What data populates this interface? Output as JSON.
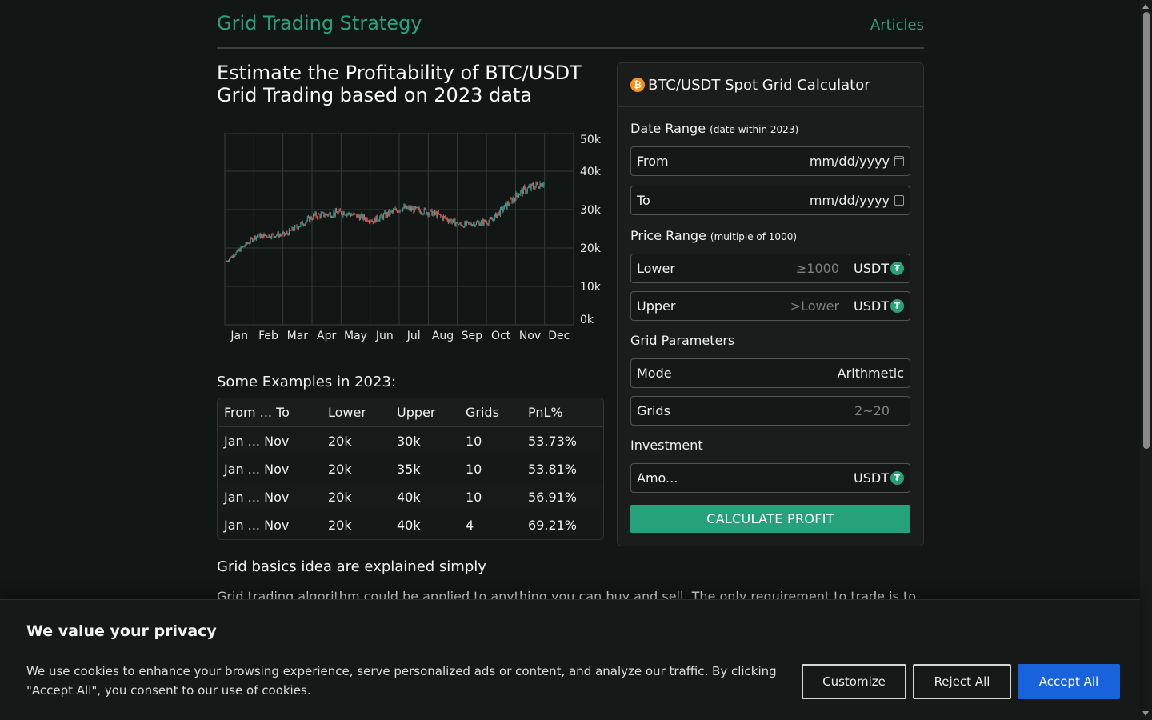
{
  "nav": {
    "brand": "Grid Trading Strategy",
    "articles": "Articles"
  },
  "headline": {
    "line1": "Estimate the Profitability of BTC/USDT",
    "line2": "Grid Trading based on 2023 data"
  },
  "chart_data": {
    "type": "candlestick",
    "title": "",
    "x_categories": [
      "Jan",
      "Feb",
      "Mar",
      "Apr",
      "May",
      "Jun",
      "Jul",
      "Aug",
      "Sep",
      "Oct",
      "Nov",
      "Dec"
    ],
    "y_ticks": [
      "0k",
      "10k",
      "20k",
      "30k",
      "40k",
      "50k"
    ],
    "ylim": [
      0,
      50000
    ],
    "grid": true,
    "colors": {
      "up": "#26a69a",
      "down": "#ef5350"
    },
    "monthly_closes": [
      16600,
      23100,
      23500,
      28400,
      29300,
      27200,
      30500,
      29200,
      26000,
      27000,
      34500,
      37700
    ]
  },
  "examples": {
    "title": "Some Examples in 2023:",
    "headers": [
      "From ... To",
      "Lower",
      "Upper",
      "Grids",
      "PnL%"
    ],
    "rows": [
      [
        "Jan ... Nov",
        "20k",
        "30k",
        "10",
        "53.73%"
      ],
      [
        "Jan ... Nov",
        "20k",
        "35k",
        "10",
        "53.81%"
      ],
      [
        "Jan ... Nov",
        "20k",
        "40k",
        "10",
        "56.91%"
      ],
      [
        "Jan ... Nov",
        "20k",
        "40k",
        "4",
        "69.21%"
      ]
    ]
  },
  "basics": {
    "title": "Grid basics idea are explained simply",
    "text": "Grid trading algorithm could be applied to anything you can buy and sell. The only requirement to trade is to"
  },
  "calculator": {
    "title": "BTC/USDT Spot Grid Calculator",
    "btc_glyph": "₿",
    "usdt_glyph": "₮",
    "date_range": {
      "label": "Date Range",
      "hint": "(date within 2023)",
      "from": "From",
      "to": "To",
      "placeholder": "mm/dd/yyyy"
    },
    "price_range": {
      "label": "Price Range",
      "hint": "(multiple of 1000)",
      "lower": "Lower",
      "lower_placeholder": "≥1000",
      "upper": "Upper",
      "upper_placeholder": ">Lower",
      "unit": "USDT"
    },
    "grid_params": {
      "label": "Grid Parameters",
      "mode": "Mode",
      "mode_value": "Arithmetic",
      "grids": "Grids",
      "grids_placeholder": "2~20"
    },
    "investment": {
      "label": "Investment",
      "amount": "Amo...",
      "unit": "USDT"
    },
    "button": "CALCULATE PROFIT"
  },
  "cookie": {
    "title": "We value your privacy",
    "text": "We use cookies to enhance your browsing experience, serve personalized ads or content, and analyze our traffic. By clicking \"Accept All\", you consent to our use of cookies.",
    "customize": "Customize",
    "reject": "Reject All",
    "accept": "Accept All"
  }
}
